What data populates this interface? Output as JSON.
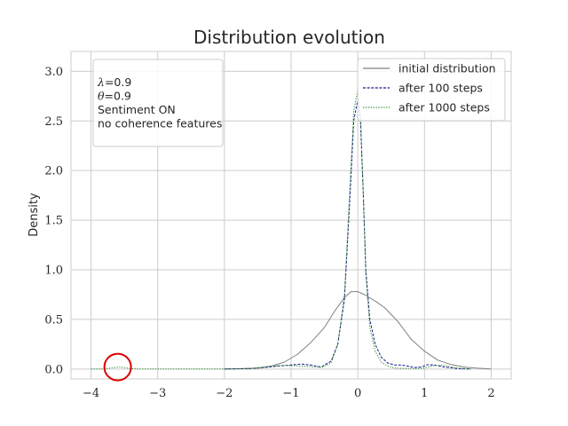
{
  "chart_data": {
    "type": "line",
    "title": "Distribution evolution",
    "xlabel": "",
    "ylabel": "Density",
    "xlim": [
      -4.3,
      2.3
    ],
    "ylim": [
      -0.1,
      3.2
    ],
    "xticks": [
      -4,
      -3,
      -2,
      -1,
      0,
      1,
      2
    ],
    "yticks": [
      0.0,
      0.5,
      1.0,
      1.5,
      2.0,
      2.5,
      3.0
    ],
    "grid": true,
    "legend_position": "top-right",
    "annotation_lines": [
      {
        "symbol": "λ",
        "text": "=0.9"
      },
      {
        "symbol": "θ",
        "text": "=0.9"
      },
      {
        "symbol": "",
        "text": "Sentiment ON"
      },
      {
        "symbol": "",
        "text": "no coherence features"
      }
    ],
    "highlight_circle": {
      "x": -3.6,
      "y": 0.02,
      "color": "#dd0000"
    },
    "series": [
      {
        "name": "initial distribution",
        "color": "#808080",
        "dash": "solid",
        "x": [
          -2.0,
          -1.7,
          -1.5,
          -1.3,
          -1.1,
          -0.9,
          -0.7,
          -0.5,
          -0.35,
          -0.2,
          -0.1,
          0.0,
          0.1,
          0.25,
          0.4,
          0.6,
          0.8,
          1.0,
          1.2,
          1.4,
          1.6,
          1.8,
          2.0
        ],
        "y": [
          0.0,
          0.005,
          0.01,
          0.03,
          0.07,
          0.15,
          0.27,
          0.42,
          0.58,
          0.72,
          0.78,
          0.78,
          0.75,
          0.69,
          0.62,
          0.48,
          0.3,
          0.18,
          0.09,
          0.045,
          0.02,
          0.008,
          0.0
        ]
      },
      {
        "name": "after 100 steps",
        "color": "#1c1c8c",
        "dash": "dashed",
        "x": [
          -2.0,
          -1.6,
          -1.4,
          -1.2,
          -1.0,
          -0.85,
          -0.7,
          -0.55,
          -0.4,
          -0.3,
          -0.2,
          -0.12,
          -0.06,
          0.0,
          0.04,
          0.08,
          0.12,
          0.18,
          0.26,
          0.35,
          0.45,
          0.55,
          0.65,
          0.75,
          0.85,
          0.95,
          1.05,
          1.15,
          1.3,
          1.5,
          1.7
        ],
        "y": [
          0.0,
          0.005,
          0.015,
          0.03,
          0.04,
          0.05,
          0.04,
          0.02,
          0.08,
          0.25,
          0.7,
          1.7,
          2.5,
          2.72,
          2.5,
          1.8,
          1.0,
          0.5,
          0.25,
          0.12,
          0.06,
          0.04,
          0.04,
          0.03,
          0.015,
          0.02,
          0.045,
          0.04,
          0.02,
          0.005,
          0.0
        ]
      },
      {
        "name": "after 1000 steps",
        "color": "#2e8b2e",
        "dash": "dotted",
        "x": [
          -4.0,
          -3.8,
          -3.7,
          -3.6,
          -3.5,
          -3.4,
          -3.2,
          -3.0,
          -2.5,
          -2.0,
          -1.6,
          -1.4,
          -1.2,
          -1.0,
          -0.85,
          -0.7,
          -0.55,
          -0.4,
          -0.3,
          -0.2,
          -0.12,
          -0.06,
          0.0,
          0.04,
          0.08,
          0.12,
          0.18,
          0.26,
          0.35,
          0.45,
          0.55,
          0.7,
          0.85,
          1.0,
          1.1,
          1.25,
          1.5,
          1.7
        ],
        "y": [
          0.0,
          0.002,
          0.01,
          0.02,
          0.015,
          0.004,
          0.0,
          0.0,
          0.0,
          0.0,
          0.005,
          0.02,
          0.035,
          0.035,
          0.03,
          0.025,
          0.015,
          0.06,
          0.25,
          0.75,
          1.8,
          2.6,
          2.82,
          2.55,
          1.8,
          0.95,
          0.42,
          0.18,
          0.07,
          0.03,
          0.01,
          0.005,
          0.005,
          0.01,
          0.03,
          0.04,
          0.01,
          0.0
        ]
      }
    ]
  }
}
